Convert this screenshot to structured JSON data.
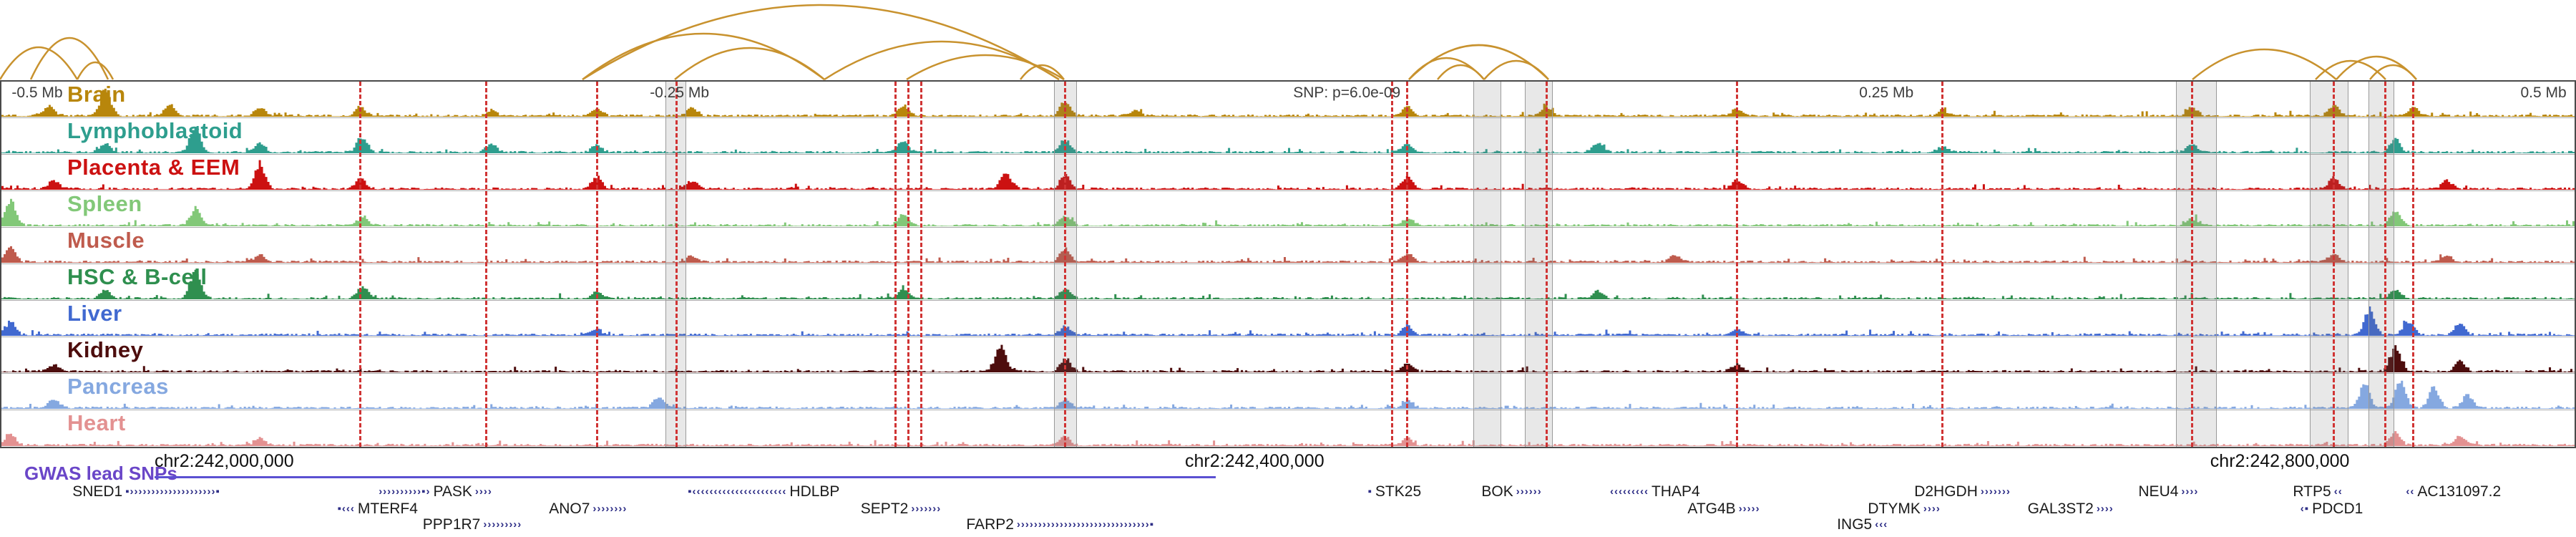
{
  "annotations": {
    "gwas_label": "GWAS lead SNPs"
  },
  "chart_data": {
    "type": "area",
    "description": "Genome browser figure: tissue chromatin signal tracks, interaction arcs, GWAS SNP lines and gene annotations around a lead SNP on chr2",
    "arc_color": "#c8922e",
    "snp_line_color": "#d03434",
    "gene_color": "#2d2d86",
    "x_axis": {
      "offset_ticks": [
        {
          "label": "-0.5 Mb",
          "x": 0.004
        },
        {
          "label": "-0.25 Mb",
          "x": 0.252
        },
        {
          "label": "0.25 Mb",
          "x": 0.722
        },
        {
          "label": "0.5 Mb",
          "x": 0.979
        }
      ],
      "snp_label": {
        "label": "SNP: p=6.0e-09",
        "x": 0.502
      },
      "genomic_ticks": [
        {
          "label": "chr2:242,000,000",
          "x": 0.06
        },
        {
          "label": "chr2:242,400,000",
          "x": 0.46
        },
        {
          "label": "chr2:242,800,000",
          "x": 0.858
        }
      ]
    },
    "tracks": [
      {
        "name": "Brain",
        "color": "#b8860b",
        "peaks": [
          {
            "x": 0.018,
            "h": 0.35
          },
          {
            "x": 0.04,
            "h": 0.95
          },
          {
            "x": 0.065,
            "h": 0.4
          },
          {
            "x": 0.1,
            "h": 0.3
          },
          {
            "x": 0.139,
            "h": 0.3
          },
          {
            "x": 0.19,
            "h": 0.2
          },
          {
            "x": 0.231,
            "h": 0.25
          },
          {
            "x": 0.268,
            "h": 0.3
          },
          {
            "x": 0.35,
            "h": 0.35
          },
          {
            "x": 0.413,
            "h": 0.5
          },
          {
            "x": 0.44,
            "h": 0.2
          },
          {
            "x": 0.546,
            "h": 0.35
          },
          {
            "x": 0.6,
            "h": 0.3
          },
          {
            "x": 0.674,
            "h": 0.25
          },
          {
            "x": 0.754,
            "h": 0.2
          },
          {
            "x": 0.851,
            "h": 0.3
          },
          {
            "x": 0.906,
            "h": 0.35
          },
          {
            "x": 0.937,
            "h": 0.3
          }
        ]
      },
      {
        "name": "Lymphoblastoid",
        "color": "#2e9e8e",
        "peaks": [
          {
            "x": 0.04,
            "h": 0.3
          },
          {
            "x": 0.075,
            "h": 0.95
          },
          {
            "x": 0.1,
            "h": 0.35
          },
          {
            "x": 0.14,
            "h": 0.5
          },
          {
            "x": 0.19,
            "h": 0.3
          },
          {
            "x": 0.231,
            "h": 0.25
          },
          {
            "x": 0.35,
            "h": 0.4
          },
          {
            "x": 0.413,
            "h": 0.45
          },
          {
            "x": 0.546,
            "h": 0.3
          },
          {
            "x": 0.62,
            "h": 0.35
          },
          {
            "x": 0.754,
            "h": 0.2
          },
          {
            "x": 0.851,
            "h": 0.3
          },
          {
            "x": 0.93,
            "h": 0.45
          }
        ]
      },
      {
        "name": "Placenta & EEM",
        "color": "#cc1111",
        "peaks": [
          {
            "x": 0.02,
            "h": 0.3
          },
          {
            "x": 0.1,
            "h": 0.9
          },
          {
            "x": 0.139,
            "h": 0.35
          },
          {
            "x": 0.231,
            "h": 0.45
          },
          {
            "x": 0.268,
            "h": 0.3
          },
          {
            "x": 0.39,
            "h": 0.6
          },
          {
            "x": 0.413,
            "h": 0.5
          },
          {
            "x": 0.546,
            "h": 0.45
          },
          {
            "x": 0.674,
            "h": 0.3
          },
          {
            "x": 0.906,
            "h": 0.4
          },
          {
            "x": 0.95,
            "h": 0.3
          }
        ]
      },
      {
        "name": "Spleen",
        "color": "#82c878",
        "peaks": [
          {
            "x": 0.003,
            "h": 0.9
          },
          {
            "x": 0.075,
            "h": 0.6
          },
          {
            "x": 0.14,
            "h": 0.3
          },
          {
            "x": 0.35,
            "h": 0.4
          },
          {
            "x": 0.413,
            "h": 0.35
          },
          {
            "x": 0.546,
            "h": 0.25
          },
          {
            "x": 0.851,
            "h": 0.25
          },
          {
            "x": 0.93,
            "h": 0.5
          }
        ]
      },
      {
        "name": "Muscle",
        "color": "#bf5b4d",
        "peaks": [
          {
            "x": 0.003,
            "h": 0.5
          },
          {
            "x": 0.1,
            "h": 0.25
          },
          {
            "x": 0.268,
            "h": 0.2
          },
          {
            "x": 0.413,
            "h": 0.5
          },
          {
            "x": 0.546,
            "h": 0.3
          },
          {
            "x": 0.65,
            "h": 0.25
          },
          {
            "x": 0.906,
            "h": 0.3
          },
          {
            "x": 0.95,
            "h": 0.25
          }
        ]
      },
      {
        "name": "HSC & B-cell",
        "color": "#2f8f4f",
        "peaks": [
          {
            "x": 0.04,
            "h": 0.3
          },
          {
            "x": 0.075,
            "h": 0.95
          },
          {
            "x": 0.14,
            "h": 0.45
          },
          {
            "x": 0.231,
            "h": 0.25
          },
          {
            "x": 0.35,
            "h": 0.35
          },
          {
            "x": 0.413,
            "h": 0.35
          },
          {
            "x": 0.62,
            "h": 0.25
          },
          {
            "x": 0.93,
            "h": 0.3
          }
        ]
      },
      {
        "name": "Liver",
        "color": "#4169d0",
        "peaks": [
          {
            "x": 0.003,
            "h": 0.45
          },
          {
            "x": 0.231,
            "h": 0.2
          },
          {
            "x": 0.413,
            "h": 0.3
          },
          {
            "x": 0.546,
            "h": 0.3
          },
          {
            "x": 0.674,
            "h": 0.2
          },
          {
            "x": 0.92,
            "h": 0.95
          },
          {
            "x": 0.935,
            "h": 0.5
          },
          {
            "x": 0.955,
            "h": 0.4
          }
        ]
      },
      {
        "name": "Kidney",
        "color": "#4d0d0d",
        "peaks": [
          {
            "x": 0.02,
            "h": 0.25
          },
          {
            "x": 0.388,
            "h": 0.9
          },
          {
            "x": 0.413,
            "h": 0.45
          },
          {
            "x": 0.546,
            "h": 0.3
          },
          {
            "x": 0.674,
            "h": 0.25
          },
          {
            "x": 0.93,
            "h": 0.85
          },
          {
            "x": 0.955,
            "h": 0.4
          }
        ]
      },
      {
        "name": "Pancreas",
        "color": "#85a8e0",
        "peaks": [
          {
            "x": 0.02,
            "h": 0.3
          },
          {
            "x": 0.255,
            "h": 0.4
          },
          {
            "x": 0.413,
            "h": 0.3
          },
          {
            "x": 0.546,
            "h": 0.3
          },
          {
            "x": 0.918,
            "h": 0.85
          },
          {
            "x": 0.932,
            "h": 1.0
          },
          {
            "x": 0.945,
            "h": 0.75
          },
          {
            "x": 0.958,
            "h": 0.5
          }
        ]
      },
      {
        "name": "Heart",
        "color": "#e39191",
        "peaks": [
          {
            "x": 0.003,
            "h": 0.4
          },
          {
            "x": 0.1,
            "h": 0.25
          },
          {
            "x": 0.413,
            "h": 0.3
          },
          {
            "x": 0.546,
            "h": 0.25
          },
          {
            "x": 0.93,
            "h": 0.45
          },
          {
            "x": 0.955,
            "h": 0.3
          }
        ]
      }
    ],
    "snp_lines": [
      0.139,
      0.188,
      0.231,
      0.262,
      0.347,
      0.352,
      0.357,
      0.413,
      0.54,
      0.546,
      0.6,
      0.674,
      0.754,
      0.851,
      0.906,
      0.926,
      0.937
    ],
    "highlight_regions": [
      {
        "x1": 0.258,
        "x2": 0.266
      },
      {
        "x1": 0.409,
        "x2": 0.418
      },
      {
        "x1": 0.572,
        "x2": 0.583
      },
      {
        "x1": 0.592,
        "x2": 0.603
      },
      {
        "x1": 0.845,
        "x2": 0.861
      },
      {
        "x1": 0.897,
        "x2": 0.912
      },
      {
        "x1": 0.92,
        "x2": 0.93
      }
    ],
    "arcs": [
      {
        "x1": 0.0,
        "x2": 0.03,
        "h": 45
      },
      {
        "x1": 0.012,
        "x2": 0.042,
        "h": 58
      },
      {
        "x1": 0.03,
        "x2": 0.044,
        "h": 24
      },
      {
        "x1": 0.226,
        "x2": 0.32,
        "h": 64
      },
      {
        "x1": 0.226,
        "x2": 0.411,
        "h": 104
      },
      {
        "x1": 0.262,
        "x2": 0.32,
        "h": 44
      },
      {
        "x1": 0.32,
        "x2": 0.411,
        "h": 53
      },
      {
        "x1": 0.352,
        "x2": 0.413,
        "h": 34
      },
      {
        "x1": 0.396,
        "x2": 0.413,
        "h": 20
      },
      {
        "x1": 0.547,
        "x2": 0.576,
        "h": 30
      },
      {
        "x1": 0.547,
        "x2": 0.601,
        "h": 48
      },
      {
        "x1": 0.558,
        "x2": 0.576,
        "h": 20
      },
      {
        "x1": 0.576,
        "x2": 0.601,
        "h": 26
      },
      {
        "x1": 0.851,
        "x2": 0.907,
        "h": 42
      },
      {
        "x1": 0.899,
        "x2": 0.926,
        "h": 26
      },
      {
        "x1": 0.907,
        "x2": 0.938,
        "h": 32
      },
      {
        "x1": 0.92,
        "x2": 0.938,
        "h": 20
      }
    ],
    "gwas_line": {
      "x1": 0.06,
      "x2": 0.472,
      "color": "#5b50d2"
    },
    "genes": [
      {
        "row": 1,
        "x": 0.027,
        "pre": "",
        "label": "SNED1",
        "post": "▪››››››››››››››››››››▪"
      },
      {
        "row": 1,
        "x": 0.147,
        "pre": "››››››››››▪›",
        "label": "PASK",
        "post": "››››"
      },
      {
        "row": 1,
        "x": 0.267,
        "pre": "▪‹‹‹‹‹‹‹‹‹‹‹‹‹‹‹‹‹‹‹‹‹‹",
        "label": "HDLBP",
        "post": ""
      },
      {
        "row": 1,
        "x": 0.531,
        "pre": "▪",
        "label": "STK25",
        "post": ""
      },
      {
        "row": 1,
        "x": 0.574,
        "pre": "",
        "label": "BOK",
        "post": "››››››"
      },
      {
        "row": 1,
        "x": 0.625,
        "pre": "‹‹‹‹‹‹‹‹‹",
        "label": "THAP4",
        "post": ""
      },
      {
        "row": 1,
        "x": 0.742,
        "pre": "",
        "label": "D2HGDH",
        "post": "›››››››"
      },
      {
        "row": 1,
        "x": 0.829,
        "pre": "",
        "label": "NEU4",
        "post": "››››"
      },
      {
        "row": 1,
        "x": 0.889,
        "pre": "",
        "label": "RTP5",
        "post": "‹‹"
      },
      {
        "row": 1,
        "x": 0.934,
        "pre": "‹‹",
        "label": "AC131097.2",
        "post": ""
      },
      {
        "row": 2,
        "x": 0.131,
        "pre": "▪‹‹‹",
        "label": "MTERF4",
        "post": ""
      },
      {
        "row": 2,
        "x": 0.212,
        "pre": "",
        "label": "ANO7",
        "post": "››››››››"
      },
      {
        "row": 2,
        "x": 0.333,
        "pre": "",
        "label": "SEPT2",
        "post": "›››››››"
      },
      {
        "row": 2,
        "x": 0.654,
        "pre": "",
        "label": "ATG4B",
        "post": "›››››"
      },
      {
        "row": 2,
        "x": 0.724,
        "pre": "",
        "label": "DTYMK",
        "post": "››››"
      },
      {
        "row": 2,
        "x": 0.786,
        "pre": "",
        "label": "GAL3ST2",
        "post": "››››"
      },
      {
        "row": 2,
        "x": 0.893,
        "pre": "‹▪",
        "label": "PDCD1",
        "post": ""
      },
      {
        "row": 3,
        "x": 0.163,
        "pre": "",
        "label": "PPP1R7",
        "post": "›››››››››"
      },
      {
        "row": 3,
        "x": 0.374,
        "pre": "",
        "label": "FARP2",
        "post": "›››››››››››››››››››››››››››››››▪"
      },
      {
        "row": 3,
        "x": 0.712,
        "pre": "",
        "label": "ING5",
        "post": "‹‹‹"
      }
    ]
  }
}
